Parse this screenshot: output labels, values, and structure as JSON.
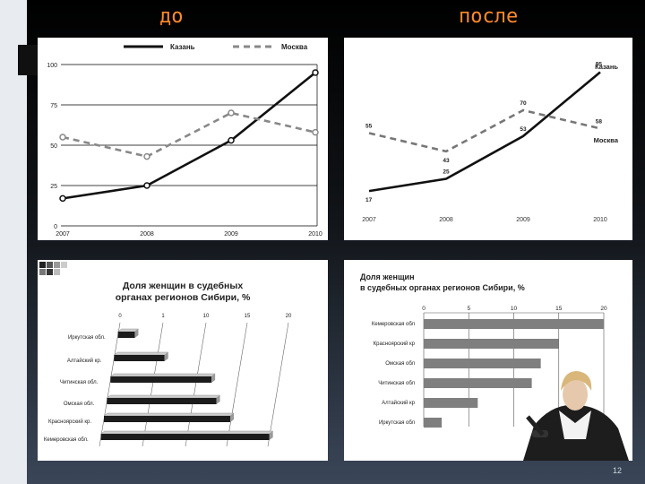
{
  "headings": {
    "before": "до",
    "after": "после"
  },
  "page_number": "12",
  "colors": {
    "heading": "#ff8a2a",
    "line_dark": "#1a1a1a",
    "line_dash": "#888888",
    "bar_gray": "#7f7f7f"
  },
  "chart_data": [
    {
      "type": "line",
      "x": [
        "2007",
        "2008",
        "2009",
        "2010"
      ],
      "series": [
        {
          "name": "Казань",
          "values": [
            17,
            25,
            53,
            95
          ]
        },
        {
          "name": "Москва",
          "values": [
            55,
            43,
            70,
            58
          ]
        }
      ],
      "yticks": [
        "0",
        "25",
        "50",
        "75",
        "100"
      ],
      "ylim": [
        0,
        100
      ],
      "grid": true,
      "legend": "top"
    },
    {
      "type": "line",
      "x": [
        "2007",
        "2008",
        "2009",
        "2010"
      ],
      "series": [
        {
          "name": "Казань",
          "values": [
            17,
            25,
            53,
            95
          ]
        },
        {
          "name": "Москва",
          "values": [
            55,
            43,
            70,
            58
          ]
        }
      ],
      "point_labels": {
        "Казань": [
          "17",
          "25",
          "53",
          "95"
        ],
        "Москва": [
          "55",
          "43",
          "70",
          "58"
        ]
      },
      "ylim": [
        0,
        100
      ],
      "grid": false,
      "legend": "inline-right"
    },
    {
      "type": "bar",
      "orientation": "horizontal",
      "title": "Доля женщин в судебных органах регионов Сибири, %",
      "categories": [
        "Иркутская обл.",
        "Алтайский кр.",
        "Читинская обл.",
        "Омская обл.",
        "Красноярский кр.",
        "Кемеровская обл."
      ],
      "values": [
        2,
        6,
        12,
        13,
        15,
        20
      ],
      "xticks": [
        "0",
        "1",
        "10",
        "15",
        "20"
      ],
      "xlim": [
        0,
        20
      ],
      "style": "3d"
    },
    {
      "type": "bar",
      "orientation": "horizontal",
      "title_lines": [
        "Доля женщин",
        "в судебных органах регионов Сибири, %"
      ],
      "categories": [
        "Кемеровская обл",
        "Красноярский кр",
        "Омская обл",
        "Читинская обл",
        "Алтайский кр",
        "Иркутская обл"
      ],
      "values": [
        20,
        15,
        13,
        12,
        6,
        2
      ],
      "xticks": [
        "0",
        "5",
        "10",
        "15",
        "20"
      ],
      "xlim": [
        0,
        20
      ]
    }
  ]
}
